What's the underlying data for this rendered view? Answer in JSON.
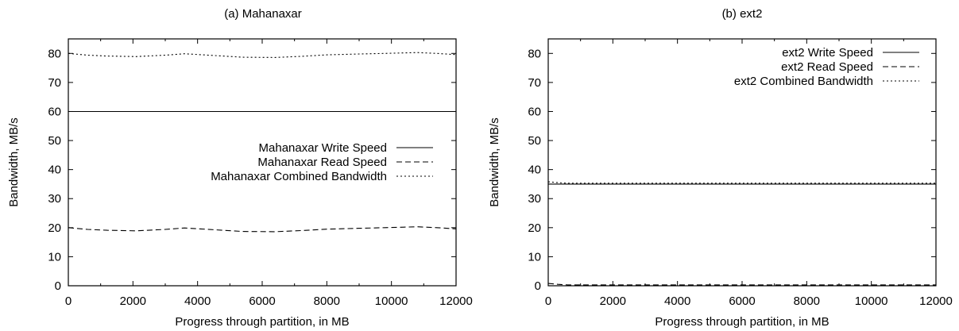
{
  "chart_data": [
    {
      "type": "line",
      "title": "(a) Mahanaxar",
      "xlabel": "Progress through partition, in MB",
      "ylabel": "Bandwidth, MB/s",
      "xlim": [
        0,
        12000
      ],
      "ylim": [
        0,
        85
      ],
      "xticks": [
        0,
        2000,
        4000,
        6000,
        8000,
        10000,
        12000
      ],
      "yticks": [
        0,
        10,
        20,
        30,
        40,
        50,
        60,
        70,
        80
      ],
      "grid": false,
      "legend_position": "center-right",
      "series": [
        {
          "name": "Mahanaxar Write Speed",
          "style": "solid",
          "x": [
            0,
            12000
          ],
          "y": [
            60,
            60
          ]
        },
        {
          "name": "Mahanaxar Read Speed",
          "style": "dashed",
          "x": [
            0,
            600,
            1200,
            2100,
            3000,
            3600,
            4500,
            5400,
            6400,
            7200,
            8000,
            9000,
            9800,
            10800,
            11400,
            12000
          ],
          "y": [
            20,
            19.4,
            19.1,
            18.9,
            19.4,
            19.9,
            19.3,
            18.7,
            18.6,
            19.0,
            19.5,
            19.8,
            20.0,
            20.3,
            20.0,
            19.6
          ]
        },
        {
          "name": "Mahanaxar Combined Bandwidth",
          "style": "dotted",
          "x": [
            0,
            600,
            1200,
            2100,
            3000,
            3600,
            4500,
            5400,
            6400,
            7200,
            8000,
            9000,
            9800,
            10800,
            11400,
            12000
          ],
          "y": [
            80,
            79.4,
            79.1,
            78.9,
            79.4,
            79.9,
            79.3,
            78.7,
            78.6,
            79.0,
            79.5,
            79.8,
            80.0,
            80.3,
            80.0,
            79.6
          ]
        }
      ]
    },
    {
      "type": "line",
      "title": "(b) ext2",
      "xlabel": "Progress through partition, in MB",
      "ylabel": "Bandwidth, MB/s",
      "xlim": [
        0,
        12000
      ],
      "ylim": [
        0,
        85
      ],
      "xticks": [
        0,
        2000,
        4000,
        6000,
        8000,
        10000,
        12000
      ],
      "yticks": [
        0,
        10,
        20,
        30,
        40,
        50,
        60,
        70,
        80
      ],
      "grid": false,
      "legend_position": "top-right",
      "series": [
        {
          "name": "ext2 Write Speed",
          "style": "solid",
          "x": [
            0,
            12000
          ],
          "y": [
            35,
            35
          ]
        },
        {
          "name": "ext2 Read Speed",
          "style": "dashed",
          "x": [
            0,
            300,
            600,
            2000,
            4000,
            6000,
            8000,
            10000,
            12000
          ],
          "y": [
            0.8,
            0.5,
            0.3,
            0.3,
            0.3,
            0.3,
            0.3,
            0.3,
            0.3
          ]
        },
        {
          "name": "ext2 Combined Bandwidth",
          "style": "dotted",
          "x": [
            0,
            300,
            600,
            2000,
            4000,
            6000,
            8000,
            10000,
            12000
          ],
          "y": [
            35.8,
            35.5,
            35.3,
            35.3,
            35.3,
            35.3,
            35.3,
            35.3,
            35.3
          ]
        }
      ]
    }
  ]
}
